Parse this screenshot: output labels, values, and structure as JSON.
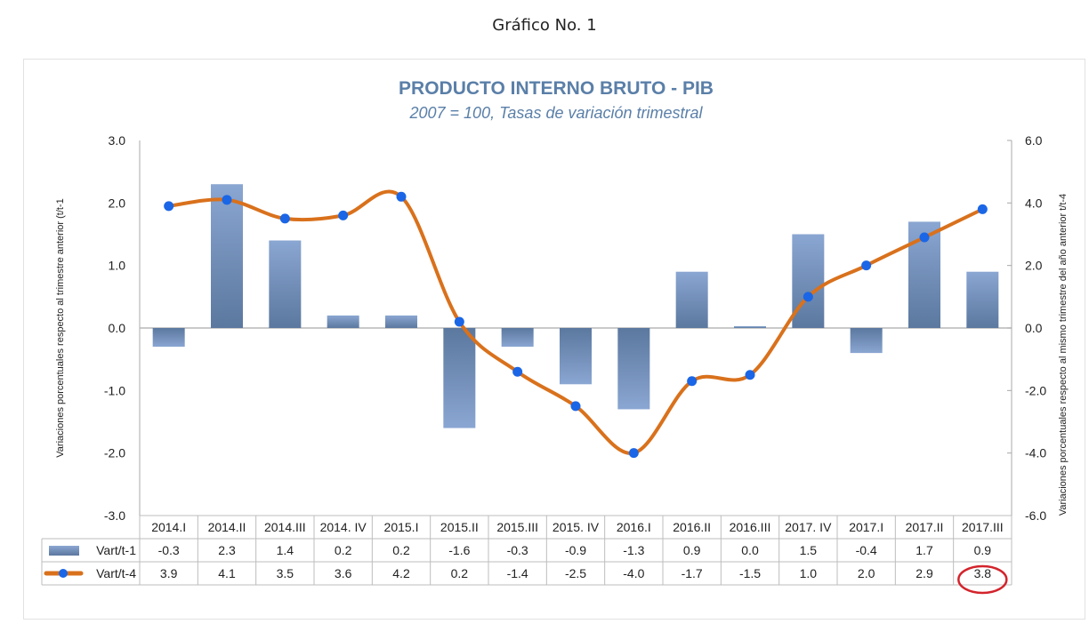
{
  "page": {
    "heading": "Gráfico No. 1"
  },
  "colors": {
    "bar_top": "#8aa6d2",
    "bar_bottom": "#5b789f",
    "line": "#d9711c",
    "marker": "#1a66e6",
    "title": "#5a7fa8",
    "highlight": "#d3242c"
  },
  "chart_data": {
    "type": "bar+line",
    "title": "PRODUCTO INTERNO BRUTO - PIB",
    "subtitle": "2007 = 100, Tasas de variación trimestral",
    "ylabel_left": "Variaciones porcentuales respecto al trimestre anterior (t/t-1",
    "ylabel_right": "Variaciones porcentuales respecto al mismo trimestre del año anterior t/t-4",
    "ylim_left": [
      -3,
      3
    ],
    "ylim_right": [
      -6,
      6
    ],
    "yticks_left": [
      "3.0",
      "2.0",
      "1.0",
      "0.0",
      "-1.0",
      "-2.0",
      "-3.0"
    ],
    "yticks_right": [
      "6.0",
      "4.0",
      "2.0",
      "0.0",
      "-2.0",
      "-4.0",
      "-6.0"
    ],
    "categories": [
      "2014.I",
      "2014.II",
      "2014.III",
      "2014. IV",
      "2015.I",
      "2015.II",
      "2015.III",
      "2015. IV",
      "2016.I",
      "2016.II",
      "2016.III",
      "2017. IV",
      "2017.I",
      "2017.II",
      "2017.III"
    ],
    "series": [
      {
        "name": "Vart/t-1",
        "kind": "bar",
        "axis": "left",
        "values": [
          -0.3,
          2.3,
          1.4,
          0.2,
          0.2,
          -1.6,
          -0.3,
          -0.9,
          -1.3,
          0.9,
          0.0,
          1.5,
          -0.4,
          1.7,
          0.9
        ],
        "labels": [
          "-0.3",
          "2.3",
          "1.4",
          "0.2",
          "0.2",
          "-1.6",
          "-0.3",
          "-0.9",
          "-1.3",
          "0.9",
          "0.0",
          "1.5",
          "-0.4",
          "1.7",
          "0.9"
        ]
      },
      {
        "name": "Vart/t-4",
        "kind": "line",
        "axis": "right",
        "smooth": true,
        "values": [
          3.9,
          4.1,
          3.5,
          3.6,
          4.2,
          0.2,
          -1.4,
          -2.5,
          -4.0,
          -1.7,
          -1.5,
          1.0,
          2.0,
          2.9,
          3.8
        ],
        "labels": [
          "3.9",
          "4.1",
          "3.5",
          "3.6",
          "4.2",
          "0.2",
          "-1.4",
          "-2.5",
          "-4.0",
          "-1.7",
          "-1.5",
          "1.0",
          "2.0",
          "2.9",
          "3.8"
        ]
      }
    ],
    "highlighted_value": "3.8",
    "legend": "data-table"
  }
}
